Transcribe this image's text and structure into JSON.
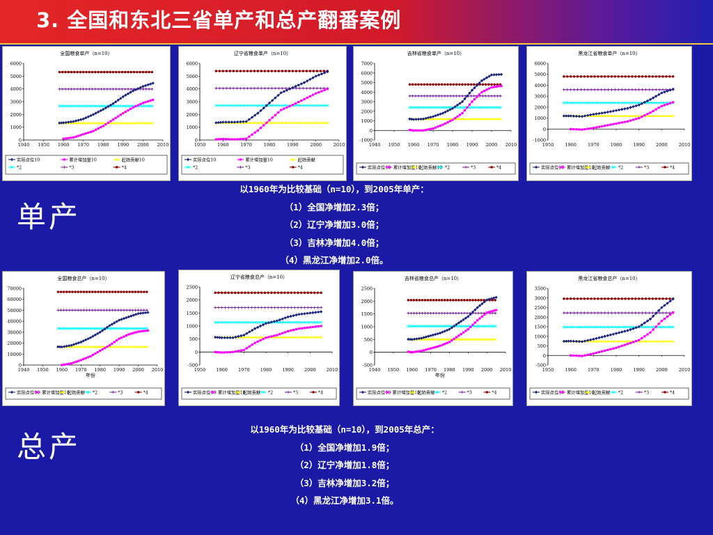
{
  "title": "3.  全国和东北三省单产和总产翻番案例",
  "label_yield": "单产",
  "label_total": "总产",
  "summary_yield": [
    "以1960年为比较基础（n=10），到2005年单产：",
    "（1）全国净增加2.3倍；",
    "（2）辽宁净增加3.0倍；",
    "（3）吉林净增加4.0倍；",
    "（4）黑龙江净增加2.0倍。"
  ],
  "summary_total": [
    "以1960年为比较基础（n=10），到2005年总产：",
    "（1）全国净增加1.9倍；",
    "（2）辽宁净增加1.8倍；",
    "（3）吉林净增加3.2倍；",
    "（4）黑龙江净增加3.1倍。"
  ],
  "colors": {
    "actual": "#1a237e",
    "cumulative": "#ff00ff",
    "start": "#ffff00",
    "x2": "#00ffff",
    "x3": "#7b1fa2",
    "x4": "#8b0000"
  },
  "chart_data": [
    {
      "type": "line",
      "title": "全国粮食单产（n=10）",
      "xlabel": "",
      "ylabel": "",
      "xlim": [
        1940,
        2010
      ],
      "ylim": [
        0,
        6000
      ],
      "xticks": [
        "1940",
        "1950",
        "1960",
        "1970",
        "1980",
        "1990",
        "2000",
        "2010"
      ],
      "yticks": [
        "0",
        "1000",
        "2000",
        "3000",
        "4000",
        "5000",
        "6000"
      ],
      "legend": [
        "实际点位10",
        "累计增加量10",
        "起始贡献10",
        "*2",
        "*3",
        "*4"
      ],
      "start": 1330,
      "actual": {
        "x": [
          1958,
          1960,
          1965,
          1970,
          1975,
          1980,
          1985,
          1990,
          1995,
          2000,
          2005
        ],
        "y": [
          1330,
          1350,
          1450,
          1650,
          2000,
          2400,
          2850,
          3400,
          3850,
          4200,
          4450
        ]
      },
      "cumulative": {
        "x": [
          1960,
          1965,
          1970,
          1975,
          1980,
          1985,
          1990,
          1995,
          2000,
          2005
        ],
        "y": [
          100,
          200,
          450,
          700,
          1100,
          1600,
          2100,
          2550,
          2900,
          3150
        ]
      }
    },
    {
      "type": "line",
      "title": "辽宁省粮食单产（n=10）",
      "xlabel": "",
      "ylabel": "",
      "xlim": [
        1950,
        2010
      ],
      "ylim": [
        0,
        6000
      ],
      "xticks": [
        "1950",
        "1960",
        "1970",
        "1980",
        "1990",
        "2000",
        "2010"
      ],
      "yticks": [
        "0",
        "1000",
        "2000",
        "3000",
        "4000",
        "5000",
        "6000"
      ],
      "legend": [
        "实际点位10",
        "累计增加量10",
        "起始贡献",
        "*2",
        "*3",
        "*4"
      ],
      "start": 1350,
      "actual": {
        "x": [
          1957,
          1960,
          1965,
          1970,
          1975,
          1980,
          1985,
          1990,
          1995,
          2000,
          2005
        ],
        "y": [
          1350,
          1400,
          1400,
          1450,
          2100,
          2900,
          3700,
          4100,
          4500,
          5000,
          5350
        ]
      },
      "cumulative": {
        "x": [
          1957,
          1960,
          1965,
          1970,
          1975,
          1980,
          1985,
          1990,
          1995,
          2000,
          2005
        ],
        "y": [
          50,
          80,
          50,
          100,
          750,
          1550,
          2350,
          2750,
          3200,
          3650,
          4000
        ]
      }
    },
    {
      "type": "line",
      "title": "吉林省粮食单产（n=10）",
      "xlabel": "",
      "ylabel": "",
      "xlim": [
        1940,
        2010
      ],
      "ylim": [
        -1000,
        7000
      ],
      "xticks": [
        "1940",
        "1950",
        "1960",
        "1970",
        "1980",
        "1990",
        "2000",
        "2010"
      ],
      "yticks": [
        "-1000",
        "0",
        "1000",
        "2000",
        "3000",
        "4000",
        "5000",
        "6000",
        "7000"
      ],
      "legend": [
        "实际点位10",
        "累计增加量10",
        "起始贡献10",
        "*2",
        "*3",
        "*4"
      ],
      "start": 1200,
      "actual": {
        "x": [
          1958,
          1960,
          1965,
          1970,
          1975,
          1980,
          1985,
          1990,
          1995,
          2000,
          2005
        ],
        "y": [
          1200,
          1150,
          1200,
          1450,
          1800,
          2300,
          3000,
          4200,
          5200,
          5800,
          5850
        ]
      },
      "cumulative": {
        "x": [
          1958,
          1960,
          1965,
          1970,
          1975,
          1980,
          1985,
          1990,
          1995,
          2000,
          2005
        ],
        "y": [
          50,
          0,
          0,
          200,
          600,
          1100,
          1800,
          3000,
          4000,
          4500,
          4650
        ]
      }
    },
    {
      "type": "line",
      "title": "黑龙江省粮食单产（n=10）",
      "xlabel": "",
      "ylabel": "",
      "xlim": [
        1950,
        2010
      ],
      "ylim": [
        -1000,
        6000
      ],
      "xticks": [
        "1950",
        "1960",
        "1970",
        "1980",
        "1990",
        "2000",
        "2010"
      ],
      "yticks": [
        "-1000",
        "0",
        "1000",
        "2000",
        "3000",
        "4000",
        "5000",
        "6000"
      ],
      "legend": [
        "实际点位10",
        "累计增加量10",
        "起始贡献",
        "*2",
        "*3",
        "*4"
      ],
      "start": 1200,
      "actual": {
        "x": [
          1957,
          1960,
          1965,
          1970,
          1975,
          1980,
          1985,
          1990,
          1995,
          2000,
          2005
        ],
        "y": [
          1200,
          1200,
          1150,
          1350,
          1500,
          1700,
          1900,
          2200,
          2700,
          3300,
          3650
        ]
      },
      "cumulative": {
        "x": [
          1960,
          1965,
          1970,
          1975,
          1980,
          1985,
          1990,
          1995,
          2000,
          2005
        ],
        "y": [
          0,
          -50,
          100,
          300,
          500,
          700,
          1000,
          1500,
          2100,
          2450
        ]
      }
    },
    {
      "type": "line",
      "title": "全国粮食总产（n=10）",
      "xlabel": "年份",
      "ylabel": "",
      "xlim": [
        1940,
        2010
      ],
      "ylim": [
        0,
        70000
      ],
      "xticks": [
        "1940",
        "1950",
        "1960",
        "1970",
        "1980",
        "1990",
        "2000",
        "2010"
      ],
      "yticks": [
        "0",
        "10000",
        "20000",
        "30000",
        "40000",
        "50000",
        "60000",
        "70000"
      ],
      "legend": [
        "实际点位10",
        "累计增加量10",
        "起始贡献",
        "*2",
        "*3",
        "*4"
      ],
      "start": 16700,
      "actual": {
        "x": [
          1958,
          1960,
          1965,
          1970,
          1975,
          1980,
          1985,
          1990,
          1995,
          2000,
          2005
        ],
        "y": [
          16700,
          16500,
          18000,
          21000,
          25000,
          30000,
          36000,
          41000,
          44000,
          47000,
          48000
        ]
      },
      "cumulative": {
        "x": [
          1960,
          1965,
          1970,
          1975,
          1980,
          1985,
          1990,
          1995,
          2000,
          2005
        ],
        "y": [
          0,
          1500,
          4500,
          8000,
          13000,
          18000,
          24000,
          28000,
          30500,
          31500
        ]
      }
    },
    {
      "type": "line",
      "title": "辽宁省粮食总产（n=10）",
      "xlabel": "",
      "ylabel": "",
      "xlim": [
        1950,
        2010
      ],
      "ylim": [
        -500,
        2500
      ],
      "xticks": [
        "1950",
        "1960",
        "1970",
        "1980",
        "1990",
        "2000",
        "2010"
      ],
      "yticks": [
        "-500",
        "0",
        "500",
        "1000",
        "1500",
        "2000",
        "2500"
      ],
      "legend": [
        "实际点位10",
        "累计增加量10",
        "起始贡献",
        "*2",
        "*3",
        "*4"
      ],
      "start": 570,
      "actual": {
        "x": [
          1957,
          1960,
          1965,
          1970,
          1975,
          1980,
          1985,
          1990,
          1995,
          2000,
          2005
        ],
        "y": [
          570,
          550,
          550,
          650,
          900,
          1100,
          1200,
          1350,
          1450,
          1500,
          1550
        ]
      },
      "cumulative": {
        "x": [
          1957,
          1960,
          1965,
          1970,
          1975,
          1980,
          1985,
          1990,
          1995,
          2000,
          2005
        ],
        "y": [
          0,
          -20,
          0,
          80,
          350,
          550,
          650,
          800,
          900,
          950,
          1000
        ]
      }
    },
    {
      "type": "line",
      "title": "吉林省粮食总产（n=10）",
      "xlabel": "年份",
      "ylabel": "",
      "xlim": [
        1940,
        2010
      ],
      "ylim": [
        -500,
        2500
      ],
      "xticks": [
        "1940",
        "1950",
        "1960",
        "1970",
        "1980",
        "1990",
        "2000",
        "2010"
      ],
      "yticks": [
        "-500",
        "0",
        "500",
        "1000",
        "1500",
        "2000",
        "2500"
      ],
      "legend": [
        "实际点位10",
        "累计增加量10",
        "起始贡献",
        "*2",
        "*3",
        "*4"
      ],
      "start": 510,
      "actual": {
        "x": [
          1958,
          1960,
          1965,
          1970,
          1975,
          1980,
          1985,
          1990,
          1995,
          2000,
          2005
        ],
        "y": [
          510,
          500,
          550,
          650,
          750,
          900,
          1150,
          1400,
          1750,
          2050,
          2150
        ]
      },
      "cumulative": {
        "x": [
          1958,
          1960,
          1965,
          1970,
          1975,
          1980,
          1985,
          1990,
          1995,
          2000,
          2005
        ],
        "y": [
          20,
          0,
          50,
          150,
          250,
          400,
          650,
          900,
          1250,
          1550,
          1650
        ]
      }
    },
    {
      "type": "line",
      "title": "黑龙江省粮食总产（n=10）",
      "xlabel": "",
      "ylabel": "",
      "xlim": [
        1950,
        2010
      ],
      "ylim": [
        -500,
        3500
      ],
      "xticks": [
        "1950",
        "1960",
        "1970",
        "1980",
        "1990",
        "2000",
        "2010"
      ],
      "yticks": [
        "-500",
        "0",
        "500",
        "1000",
        "1500",
        "2000",
        "2500",
        "3000",
        "3500"
      ],
      "legend": [
        "实际点位10",
        "累计增加量10",
        "起始贡献",
        "*2",
        "*3",
        "*4"
      ],
      "start": 740,
      "actual": {
        "x": [
          1957,
          1960,
          1965,
          1970,
          1975,
          1980,
          1985,
          1990,
          1995,
          2000,
          2005
        ],
        "y": [
          740,
          750,
          720,
          850,
          1000,
          1150,
          1300,
          1500,
          1900,
          2500,
          2950
        ]
      },
      "cumulative": {
        "x": [
          1960,
          1965,
          1970,
          1975,
          1980,
          1985,
          1990,
          1995,
          2000,
          2005
        ],
        "y": [
          0,
          -30,
          100,
          250,
          400,
          600,
          800,
          1200,
          1800,
          2250
        ]
      }
    }
  ]
}
